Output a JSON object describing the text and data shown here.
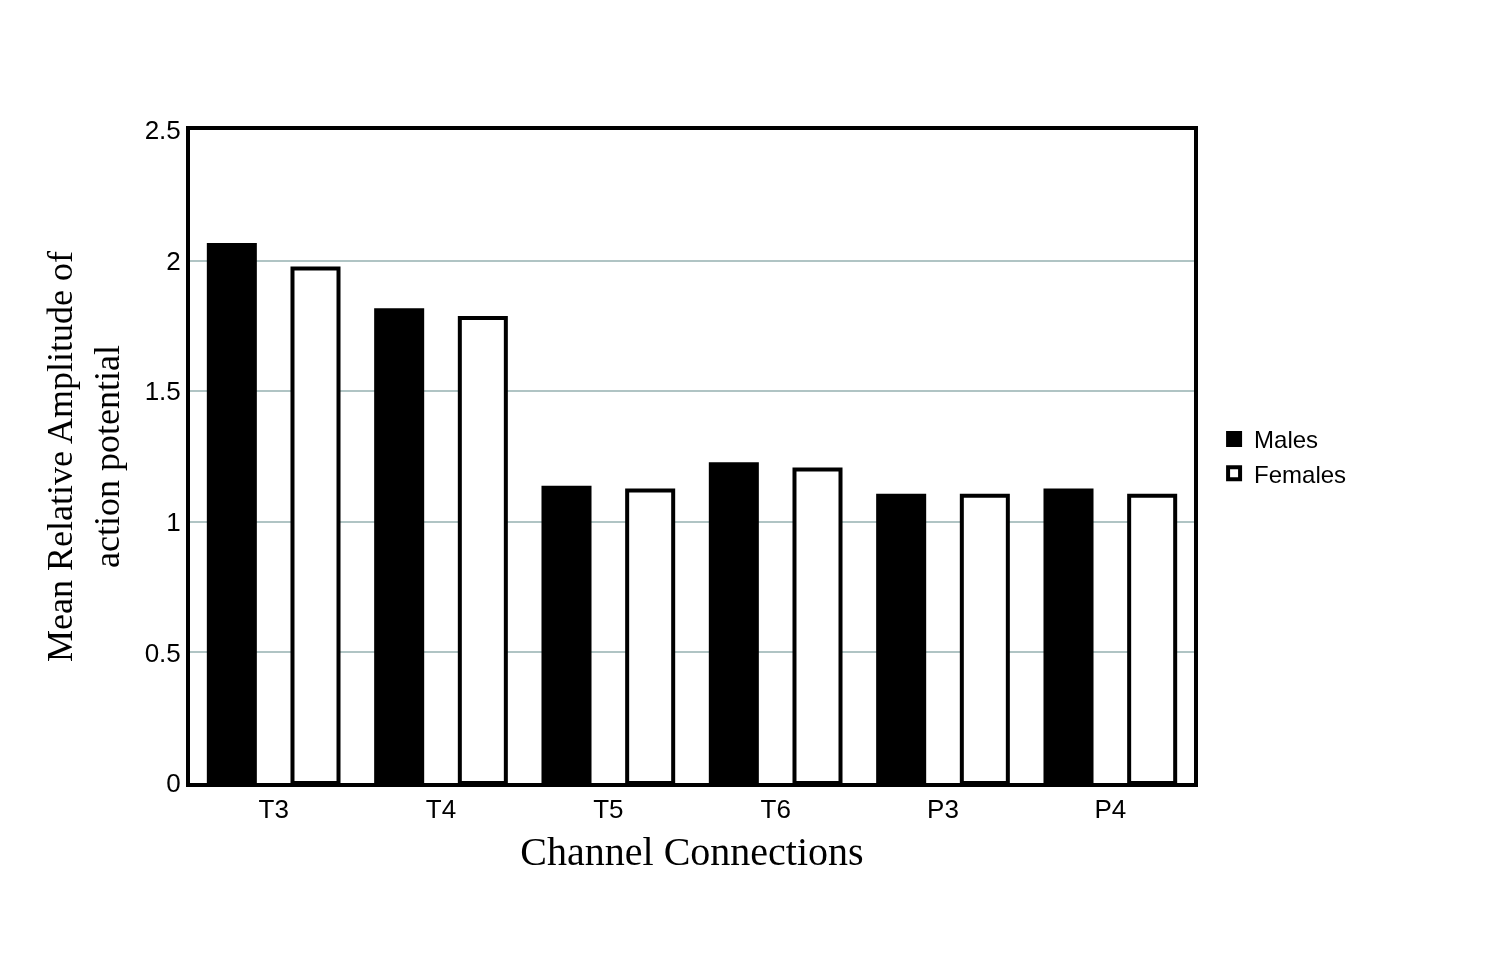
{
  "chart_data": {
    "type": "bar",
    "categories": [
      "T3",
      "T4",
      "T5",
      "T6",
      "P3",
      "P4"
    ],
    "series": [
      {
        "name": "Males",
        "color": "#000000",
        "values": [
          2.06,
          1.81,
          1.13,
          1.22,
          1.1,
          1.12
        ]
      },
      {
        "name": "Females",
        "color": "#ffffff",
        "values": [
          1.97,
          1.78,
          1.12,
          1.2,
          1.1,
          1.1
        ]
      }
    ],
    "xlabel": "Channel Connections",
    "ylabel": "Mean Relative Amplitude of\naction potential",
    "ylim": [
      0,
      2.5
    ],
    "yticks": [
      0,
      0.5,
      1,
      1.5,
      2,
      2.5
    ],
    "grid": "y",
    "legend": "right"
  }
}
